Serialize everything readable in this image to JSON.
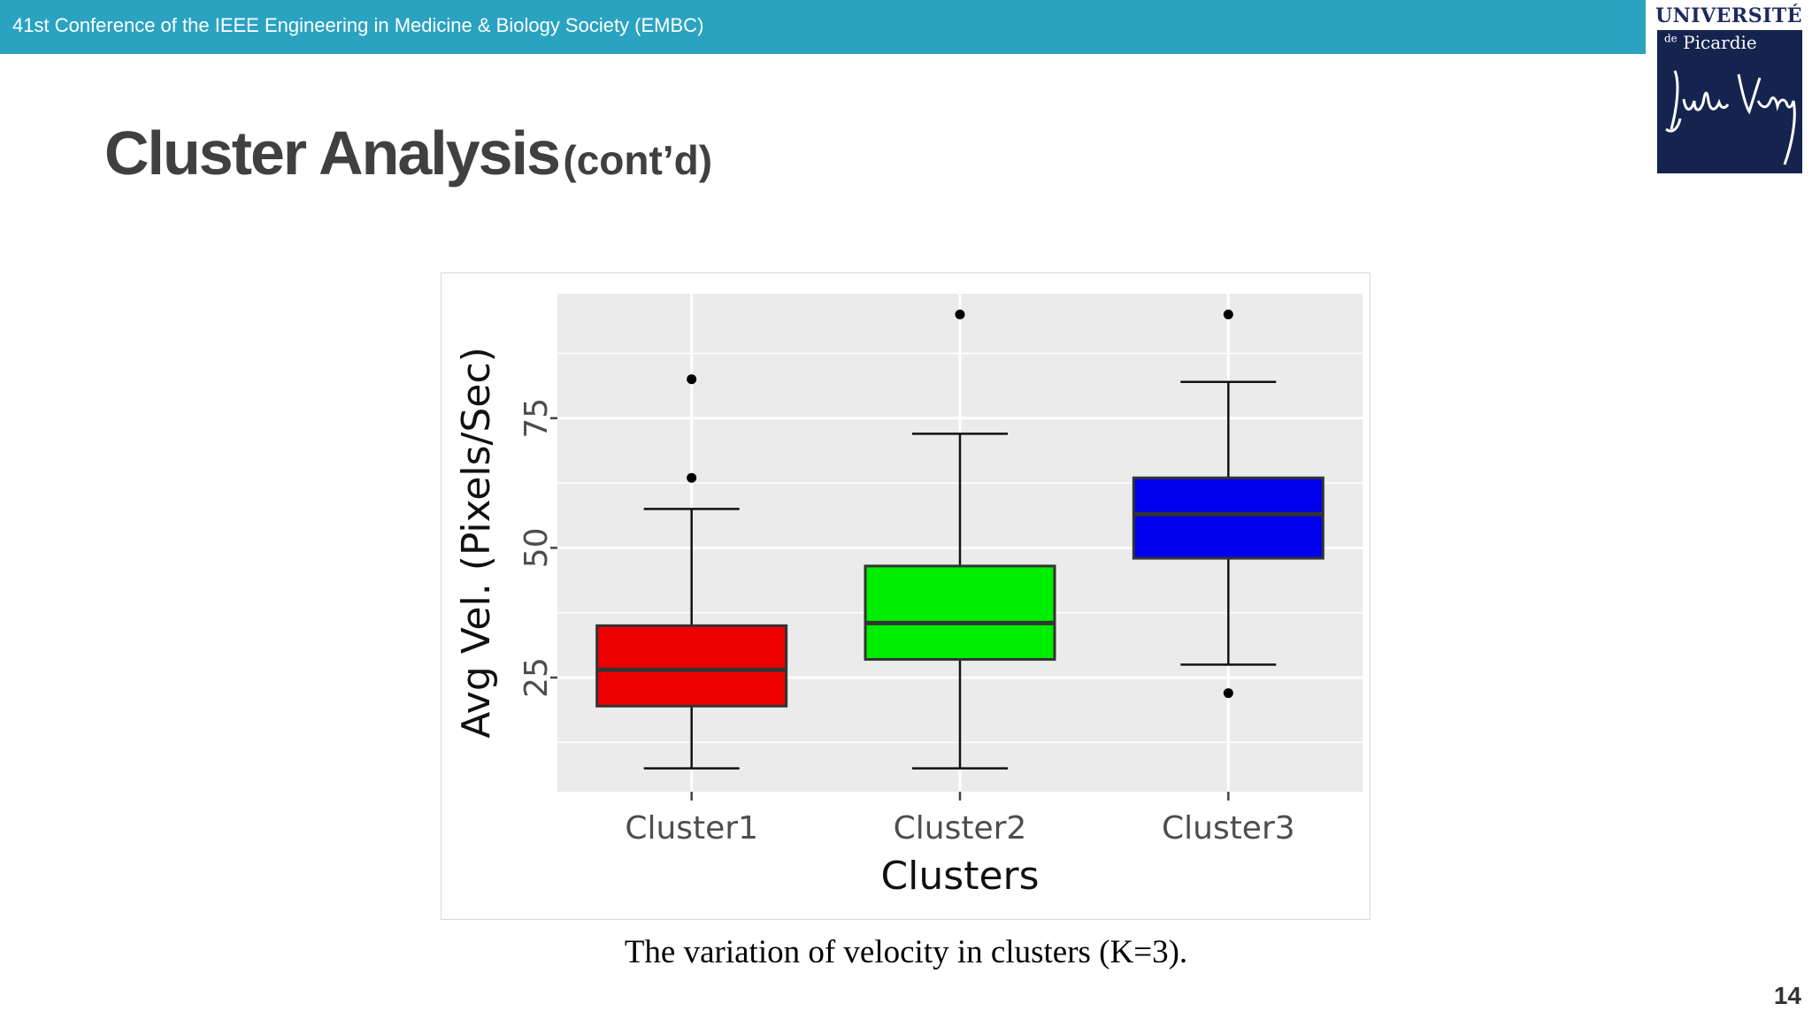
{
  "header": {
    "conference": "41st Conference of the IEEE Engineering in Medicine & Biology Society (EMBC)"
  },
  "logo": {
    "word": "UNIVERSITÉ",
    "sub_de": "de",
    "sub_name": "Picardie",
    "signature": "Jules Verne"
  },
  "slide": {
    "title": "Cluster Analysis",
    "title_suffix": "(cont’d)",
    "caption": "The variation of velocity in clusters (K=3).",
    "page_number": "14"
  },
  "chart_data": {
    "type": "boxplot",
    "xlabel": "Clusters",
    "ylabel": "Avg Vel. (Pixels/Sec)",
    "categories": [
      "Cluster1",
      "Cluster2",
      "Cluster3"
    ],
    "ylim": [
      3,
      99
    ],
    "yticks": [
      25,
      50,
      75
    ],
    "grid": true,
    "boxes": [
      {
        "category": "Cluster1",
        "color": "#ee0000",
        "whisker_low": 7.5,
        "q1": 19.5,
        "median": 26.5,
        "q3": 35,
        "whisker_high": 57.5,
        "outliers": [
          63.5,
          82.5
        ]
      },
      {
        "category": "Cluster2",
        "color": "#00ee00",
        "whisker_low": 7.5,
        "q1": 28.5,
        "median": 35.5,
        "q3": 46.5,
        "whisker_high": 72,
        "outliers": [
          95
        ]
      },
      {
        "category": "Cluster3",
        "color": "#0000ee",
        "whisker_low": 27.5,
        "q1": 48,
        "median": 56.5,
        "q3": 63.5,
        "whisker_high": 82,
        "outliers": [
          22,
          95
        ]
      }
    ]
  }
}
